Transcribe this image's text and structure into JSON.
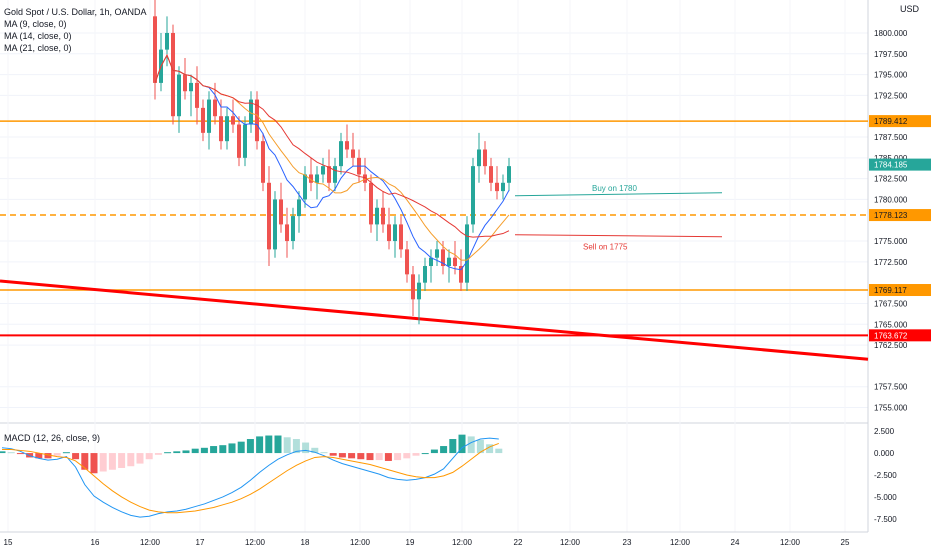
{
  "title": "Gold Spot / U.S. Dollar, 1h, OANDA",
  "indicators": [
    "MA (9, close, 0)",
    "MA (14, close, 0)",
    "MA (21, close, 0)"
  ],
  "macd_label": "MACD (12, 26, close, 9)",
  "currency": "USD",
  "colors": {
    "up": "#26a69a",
    "down": "#ef5350",
    "ma9": "#2962ff",
    "ma14": "#f59d2a",
    "ma21": "#e53935",
    "level_line": "#ff9800",
    "trend_line": "#ff0000",
    "buy_line": "#26a69a",
    "sell_line": "#e53935",
    "macd_line": "#2196f3",
    "signal_line": "#ff9800"
  },
  "chart_data": {
    "type": "candlestick",
    "price_axis": {
      "range": [
        1753.5,
        1803.0
      ],
      "ticks": [
        "1800.000",
        "1797.500",
        "1795.000",
        "1792.500",
        "1787.500",
        "1785.000",
        "1782.500",
        "1780.000",
        "1775.000",
        "1772.500",
        "1767.500",
        "1765.000",
        "1762.500",
        "1757.500",
        "1755.000"
      ],
      "badges": [
        {
          "label": "1789.412",
          "value": 1789.412,
          "color": "#ff9800"
        },
        {
          "label": "1784.185",
          "value": 1784.185,
          "color": "#26a69a"
        },
        {
          "label": "1778.123",
          "value": 1778.123,
          "color": "#ff9800"
        },
        {
          "label": "1769.117",
          "value": 1769.117,
          "color": "#ff9800"
        },
        {
          "label": "1763.672",
          "value": 1763.672,
          "color": "#ff0000"
        }
      ]
    },
    "time_axis": {
      "labels": [
        "15",
        "16",
        "12:00",
        "17",
        "12:00",
        "18",
        "12:00",
        "19",
        "12:00",
        "22",
        "12:00",
        "23",
        "12:00",
        "24",
        "12:00",
        "25"
      ]
    },
    "levels": [
      {
        "value": 1789.412,
        "style": "solid",
        "color": "#ff9800"
      },
      {
        "value": 1778.123,
        "style": "dashed",
        "color": "#ff9800"
      },
      {
        "value": 1769.117,
        "style": "solid",
        "color": "#ff9800"
      },
      {
        "value": 1763.672,
        "style": "solid",
        "color": "#ff0000"
      }
    ],
    "trendline": {
      "from": {
        "time": "15",
        "price": 1770.2
      },
      "to": {
        "time": "25 +",
        "price": 1760.8
      }
    },
    "annotations": [
      {
        "text": "Buy on 1780",
        "price": 1780.8,
        "color": "#26a69a"
      },
      {
        "text": "Sell on 1775",
        "price": 1776.0,
        "color": "#e53935"
      }
    ],
    "candles": [
      [
        1802,
        1804,
        1792,
        1794
      ],
      [
        1794,
        1800,
        1793,
        1798
      ],
      [
        1798,
        1802,
        1796,
        1800
      ],
      [
        1800,
        1801,
        1789,
        1790
      ],
      [
        1790,
        1796,
        1788,
        1795
      ],
      [
        1795,
        1797,
        1792,
        1793
      ],
      [
        1793,
        1795,
        1790,
        1794
      ],
      [
        1794,
        1796,
        1789,
        1791
      ],
      [
        1791,
        1792,
        1787,
        1788
      ],
      [
        1788,
        1793,
        1786,
        1792
      ],
      [
        1792,
        1794,
        1789,
        1790
      ],
      [
        1790,
        1792,
        1786,
        1787
      ],
      [
        1787,
        1791,
        1786,
        1790
      ],
      [
        1790,
        1792,
        1788,
        1789
      ],
      [
        1789,
        1790,
        1784,
        1785
      ],
      [
        1785,
        1790,
        1784,
        1789
      ],
      [
        1789,
        1793,
        1788,
        1792
      ],
      [
        1792,
        1793,
        1786,
        1787
      ],
      [
        1787,
        1788,
        1781,
        1782
      ],
      [
        1782,
        1784,
        1772,
        1774
      ],
      [
        1774,
        1781,
        1773,
        1780
      ],
      [
        1780,
        1782,
        1776,
        1777
      ],
      [
        1777,
        1779,
        1773,
        1775
      ],
      [
        1775,
        1779,
        1774,
        1778
      ],
      [
        1778,
        1781,
        1776,
        1780
      ],
      [
        1780,
        1784,
        1779,
        1783
      ],
      [
        1783,
        1785,
        1781,
        1782
      ],
      [
        1782,
        1784,
        1780,
        1783
      ],
      [
        1783,
        1785,
        1782,
        1784
      ],
      [
        1784,
        1786,
        1781,
        1782
      ],
      [
        1782,
        1785,
        1781,
        1784
      ],
      [
        1784,
        1788,
        1783,
        1787
      ],
      [
        1787,
        1789,
        1785,
        1786
      ],
      [
        1786,
        1788,
        1784,
        1785
      ],
      [
        1785,
        1786,
        1782,
        1783
      ],
      [
        1783,
        1785,
        1781,
        1782
      ],
      [
        1782,
        1783,
        1776,
        1777
      ],
      [
        1777,
        1780,
        1775,
        1779
      ],
      [
        1779,
        1781,
        1776,
        1777
      ],
      [
        1777,
        1779,
        1774,
        1775
      ],
      [
        1775,
        1778,
        1773,
        1777
      ],
      [
        1777,
        1778,
        1773,
        1774
      ],
      [
        1774,
        1775,
        1770,
        1771
      ],
      [
        1771,
        1772,
        1766,
        1768
      ],
      [
        1768,
        1771,
        1765,
        1770
      ],
      [
        1770,
        1773,
        1769,
        1772
      ],
      [
        1772,
        1774,
        1770,
        1773
      ],
      [
        1773,
        1775,
        1772,
        1774
      ],
      [
        1774,
        1775,
        1771,
        1772
      ],
      [
        1772,
        1774,
        1770,
        1773
      ],
      [
        1773,
        1775,
        1771,
        1772
      ],
      [
        1772,
        1774,
        1769,
        1770
      ],
      [
        1770,
        1778,
        1769,
        1777
      ],
      [
        1777,
        1785,
        1776,
        1784
      ],
      [
        1784,
        1788,
        1782,
        1786
      ],
      [
        1786,
        1787,
        1783,
        1784
      ],
      [
        1784,
        1785,
        1781,
        1782
      ],
      [
        1782,
        1784,
        1780,
        1781
      ],
      [
        1781,
        1783,
        1780,
        1782
      ],
      [
        1782,
        1785,
        1781,
        1784
      ]
    ],
    "macd": {
      "range": [
        -8.2,
        3.2
      ],
      "ticks": [
        "2.500",
        "0.000",
        "-2.500",
        "-5.000",
        "-7.500"
      ],
      "macd_line": [
        0.6,
        0.5,
        0.2,
        -0.3,
        -0.6,
        -0.8,
        -0.7,
        -0.4,
        -1.6,
        -3.6,
        -4.9,
        -5.6,
        -6.2,
        -6.7,
        -7.1,
        -7.3,
        -7.2,
        -6.9,
        -6.7,
        -6.6,
        -6.4,
        -6.1,
        -5.8,
        -5.4,
        -5.0,
        -4.5,
        -3.9,
        -3.1,
        -2.2,
        -1.4,
        -0.7,
        -0.2,
        0.2,
        0.3,
        0.1,
        -0.3,
        -0.8,
        -1.2,
        -1.5,
        -1.8,
        -2.1,
        -2.4,
        -2.8,
        -3.0,
        -3.1,
        -3.0,
        -2.8,
        -2.4,
        -1.8,
        -0.6,
        0.6,
        1.2,
        1.6,
        1.7,
        1.6
      ],
      "signal_line": [
        0.4,
        0.4,
        0.3,
        0.2,
        0.0,
        -0.2,
        -0.4,
        -0.5,
        -0.9,
        -1.7,
        -2.6,
        -3.5,
        -4.3,
        -5.0,
        -5.6,
        -6.1,
        -6.5,
        -6.7,
        -6.8,
        -6.8,
        -6.7,
        -6.6,
        -6.4,
        -6.2,
        -5.9,
        -5.6,
        -5.2,
        -4.7,
        -4.1,
        -3.4,
        -2.7,
        -2.0,
        -1.4,
        -0.9,
        -0.5,
        -0.4,
        -0.5,
        -0.7,
        -0.9,
        -1.1,
        -1.3,
        -1.6,
        -1.9,
        -2.2,
        -2.5,
        -2.7,
        -2.8,
        -2.8,
        -2.6,
        -2.2,
        -1.5,
        -0.7,
        0.1,
        0.7,
        1.1
      ]
    }
  }
}
